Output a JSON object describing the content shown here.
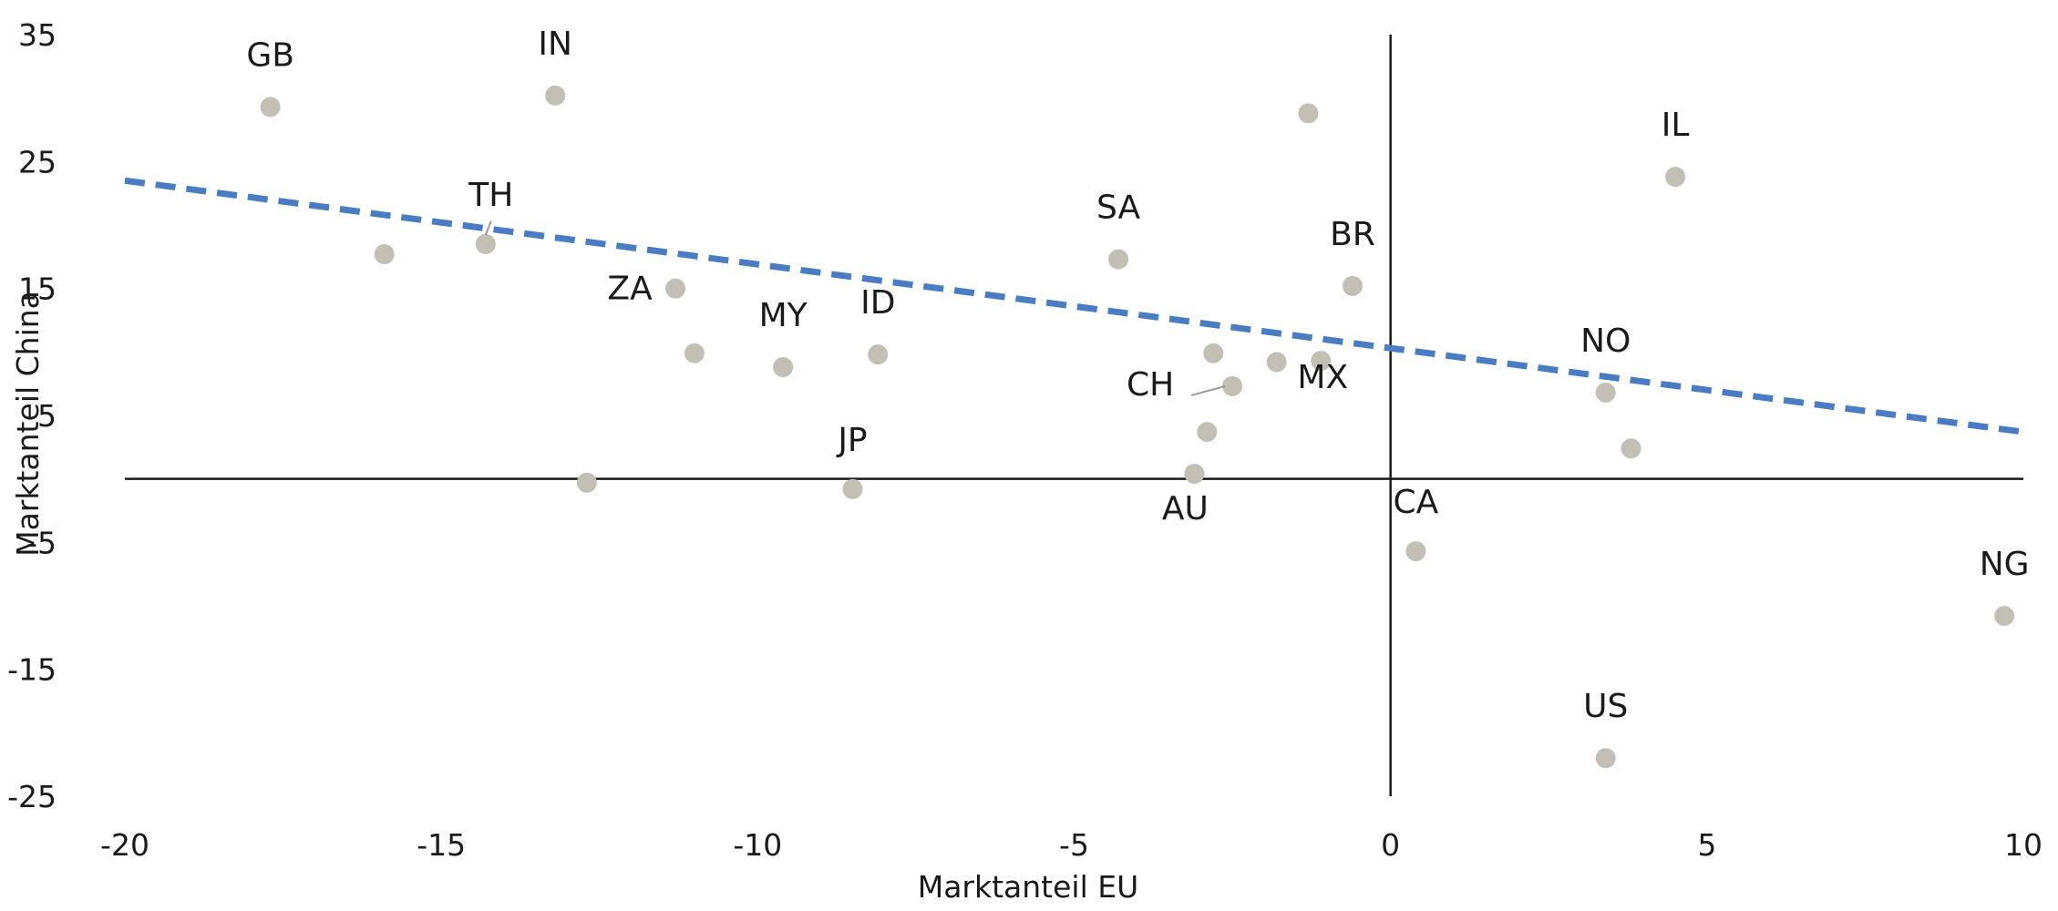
{
  "chart_data": {
    "type": "scatter",
    "xlabel": "Marktanteil EU",
    "ylabel": "Marktanteil China",
    "xlim": [
      -20,
      10
    ],
    "ylim": [
      -25,
      35
    ],
    "xticks": [
      -20,
      -15,
      -10,
      -5,
      0,
      5,
      10
    ],
    "yticks": [
      35,
      25,
      15,
      5,
      -5,
      -15,
      -25
    ],
    "grid": false,
    "legend": "none",
    "points": [
      {
        "label": "GB",
        "x": -17.7,
        "y": 29.3
      },
      {
        "label": "IN",
        "x": -13.2,
        "y": 30.2
      },
      {
        "label": "",
        "x": -15.9,
        "y": 17.7
      },
      {
        "label": "TH",
        "x": -14.3,
        "y": 18.5
      },
      {
        "label": "ZA",
        "x": -11.3,
        "y": 15.0
      },
      {
        "label": "",
        "x": -11.0,
        "y": 9.9
      },
      {
        "label": "MY",
        "x": -9.6,
        "y": 8.8
      },
      {
        "label": "ID",
        "x": -8.1,
        "y": 9.8
      },
      {
        "label": "",
        "x": -12.7,
        "y": -0.3
      },
      {
        "label": "JP",
        "x": -8.5,
        "y": -0.8
      },
      {
        "label": "SA",
        "x": -4.3,
        "y": 17.3
      },
      {
        "label": "",
        "x": -1.3,
        "y": 28.8
      },
      {
        "label": "BR",
        "x": -0.6,
        "y": 15.2
      },
      {
        "label": "",
        "x": -2.8,
        "y": 9.9
      },
      {
        "label": "CH",
        "x": -2.5,
        "y": 7.3
      },
      {
        "label": "",
        "x": -1.8,
        "y": 9.2
      },
      {
        "label": "MX",
        "x": -1.1,
        "y": 9.3
      },
      {
        "label": "",
        "x": -2.9,
        "y": 3.7
      },
      {
        "label": "AU",
        "x": -3.1,
        "y": 0.4
      },
      {
        "label": "IL",
        "x": 4.5,
        "y": 23.8
      },
      {
        "label": "NO",
        "x": 3.4,
        "y": 6.8
      },
      {
        "label": "",
        "x": 3.8,
        "y": 2.4
      },
      {
        "label": "CA",
        "x": 0.4,
        "y": -5.7
      },
      {
        "label": "NG",
        "x": 9.7,
        "y": -10.8
      },
      {
        "label": "US",
        "x": 3.4,
        "y": -22.0
      }
    ],
    "trendline": {
      "x": [
        -20,
        10
      ],
      "y": [
        23.5,
        3.7
      ]
    },
    "colors": {
      "point": "#c4bfb4",
      "trendline": "#4a7cc4",
      "axis": "#1a1a1a",
      "text": "#1a1a1a"
    }
  }
}
